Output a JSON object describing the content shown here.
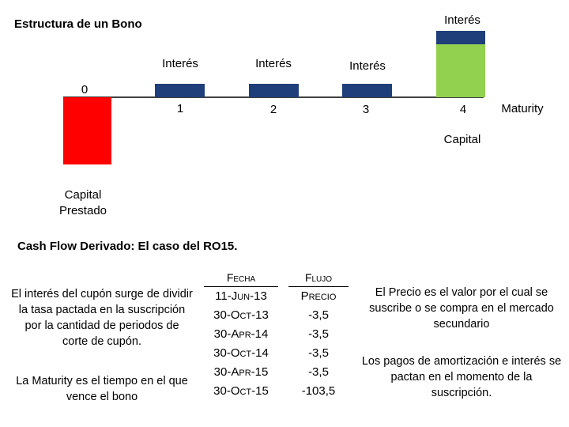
{
  "diagram": {
    "title": "Estructura de un Bono",
    "interest_label": "Interés",
    "period_labels": [
      "0",
      "1",
      "2",
      "3",
      "4"
    ],
    "maturity_label": "Maturity",
    "capital_label": "Capital",
    "capital_prestado_line1": "Capital",
    "capital_prestado_line2": "Prestado",
    "colors": {
      "loan": "#ff0000",
      "interest": "#1f3f7a",
      "capital": "#92d050",
      "axis": "#000000"
    }
  },
  "section": {
    "subtitle": "Cash Flow Derivado: El caso del RO15."
  },
  "left_notes": {
    "coupon_note": "El interés del cupón surge de dividir la tasa pactada en la suscripción por la cantidad de periodos de corte de cupón.",
    "maturity_note": "La Maturity es el tiempo en el que vence el bono"
  },
  "table": {
    "headers": {
      "fecha": "Fecha",
      "flujo": "Flujo"
    },
    "rows": [
      {
        "fecha": "11-Jun-13",
        "flujo": "Precio"
      },
      {
        "fecha": "30-Oct-13",
        "flujo": "-3,5"
      },
      {
        "fecha": "30-Apr-14",
        "flujo": "-3,5"
      },
      {
        "fecha": "30-Oct-14",
        "flujo": "-3,5"
      },
      {
        "fecha": "30-Apr-15",
        "flujo": "-3,5"
      },
      {
        "fecha": "30-Oct-15",
        "flujo": "-103,5"
      }
    ]
  },
  "right_notes": {
    "price_note": "El Precio es el valor por el cual se suscribe o se compra en el mercado secundario",
    "payments_note": "Los pagos de amortización e interés se pactan en el momento de la suscripción."
  }
}
